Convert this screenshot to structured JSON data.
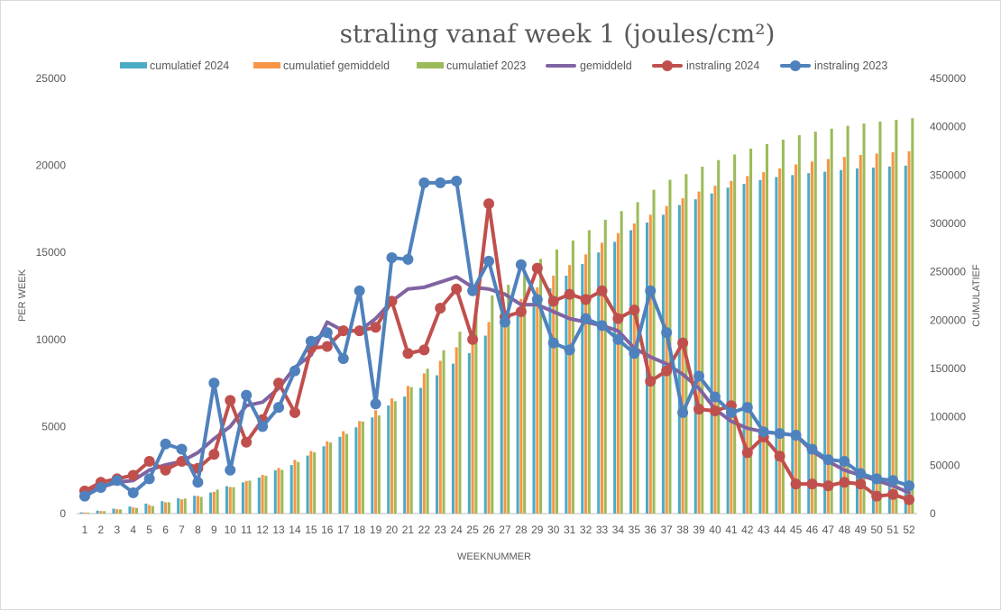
{
  "chart_data": {
    "type": "bar",
    "title": "straling vanaf week 1 (joules/cm²)",
    "xlabel": "WEEKNUMMER",
    "ylabel": "PER WEEK",
    "y2label": "CUMULATIEF",
    "ylim": [
      0,
      25000
    ],
    "y2lim": [
      0,
      450000
    ],
    "y_ticks": [
      "0",
      "5000",
      "10000",
      "15000",
      "20000",
      "25000"
    ],
    "y2_ticks": [
      "0",
      "50000",
      "100000",
      "150000",
      "200000",
      "250000",
      "300000",
      "350000",
      "400000",
      "450000"
    ],
    "grid": false,
    "legend_position": "top",
    "categories": [
      "1",
      "2",
      "3",
      "4",
      "5",
      "6",
      "7",
      "8",
      "9",
      "10",
      "11",
      "12",
      "13",
      "14",
      "15",
      "16",
      "17",
      "18",
      "19",
      "20",
      "21",
      "22",
      "23",
      "24",
      "25",
      "26",
      "27",
      "28",
      "29",
      "30",
      "31",
      "32",
      "33",
      "34",
      "35",
      "36",
      "37",
      "38",
      "39",
      "40",
      "41",
      "42",
      "43",
      "44",
      "45",
      "46",
      "47",
      "48",
      "49",
      "50",
      "51",
      "52"
    ],
    "bar_series": [
      {
        "name": "cumulatief 2024",
        "color": "#4bacc6",
        "axis": "right",
        "values": [
          1300,
          3100,
          5100,
          7300,
          10300,
          12800,
          15800,
          18400,
          21800,
          28300,
          32300,
          37200,
          44700,
          50200,
          60000,
          69600,
          79400,
          89200,
          99500,
          111800,
          121000,
          130000,
          143000,
          155000,
          166000,
          184000,
          195000,
          206000,
          221000,
          233000,
          246000,
          258000,
          270000,
          281000,
          293000,
          301000,
          309000,
          319000,
          325000,
          331000,
          337000,
          341000,
          345000,
          348000,
          350000,
          352000,
          353500,
          355200,
          356900,
          357800,
          358900,
          359800
        ]
      },
      {
        "name": "cumulatief gemiddeld",
        "color": "#f79646",
        "axis": "right",
        "values": [
          1200,
          2700,
          4500,
          6400,
          8900,
          11700,
          14700,
          18200,
          22500,
          27500,
          33700,
          40000,
          47200,
          55600,
          64700,
          74700,
          85200,
          95700,
          106900,
          119100,
          132000,
          145000,
          158000,
          172000,
          185000,
          198000,
          210000,
          222000,
          234000,
          246000,
          257000,
          268000,
          280000,
          290000,
          300000,
          309000,
          318000,
          326000,
          333000,
          339000,
          344000,
          349000,
          353000,
          357000,
          361000,
          364000,
          366600,
          368800,
          370800,
          372300,
          373600,
          374700
        ]
      },
      {
        "name": "cumulatief 2023",
        "color": "#9bbb59",
        "axis": "right",
        "values": [
          1000,
          2500,
          4300,
          5900,
          7800,
          11800,
          15500,
          17300,
          24800,
          27300,
          34100,
          39100,
          45200,
          53400,
          63300,
          73500,
          82400,
          95200,
          101500,
          116200,
          130800,
          149800,
          168900,
          188100,
          211100,
          225600,
          236600,
          251000,
          263300,
          273100,
          282400,
          293000,
          303800,
          312800,
          322000,
          334800,
          345200,
          351000,
          358800,
          365500,
          371300,
          377400,
          382100,
          386700,
          391200,
          394900,
          398000,
          401000,
          403300,
          405300,
          407200,
          408800
        ]
      },
      {
        "name": "gemiddeld",
        "color": "#8064a2",
        "axis": "left",
        "line_only": true
      }
    ],
    "line_series": [
      {
        "name": "gemiddeld",
        "color": "#8064a2",
        "marker": false,
        "values": [
          1200,
          1500,
          1800,
          1900,
          2500,
          2800,
          3000,
          3500,
          4300,
          5000,
          6200,
          6400,
          7200,
          8400,
          9100,
          11000,
          10500,
          10500,
          11200,
          12200,
          12900,
          13000,
          13300,
          13600,
          13000,
          12900,
          12600,
          12000,
          12000,
          11600,
          11200,
          11000,
          10800,
          10500,
          9500,
          9000,
          8600,
          8000,
          7200,
          6000,
          5300,
          4900,
          4700,
          4600,
          4500,
          3600,
          3000,
          2500,
          2200,
          1900,
          1600,
          1200
        ]
      },
      {
        "name": "instraling 2024",
        "color": "#c0504d",
        "marker": true,
        "values": [
          1300,
          1800,
          2000,
          2200,
          3000,
          2500,
          3000,
          2600,
          3400,
          6500,
          4100,
          5400,
          7500,
          5800,
          9500,
          9600,
          10500,
          10500,
          10700,
          12200,
          9200,
          9400,
          11800,
          12900,
          10000,
          17800,
          11300,
          11600,
          14100,
          12200,
          12600,
          12300,
          12800,
          11200,
          11700,
          7600,
          8200,
          9800,
          6000,
          5900,
          6200,
          3500,
          4400,
          3300,
          1700,
          1700,
          1600,
          1800,
          1700,
          1000,
          1100,
          800
        ]
      },
      {
        "name": "instraling 2023",
        "color": "#4f81bd",
        "marker": true,
        "values": [
          1000,
          1500,
          1900,
          1200,
          2000,
          4000,
          3700,
          1800,
          7500,
          2500,
          6800,
          5000,
          6100,
          8200,
          9900,
          10400,
          8900,
          12800,
          6300,
          14700,
          14600,
          19000,
          19000,
          19100,
          12800,
          14500,
          11000,
          14300,
          12300,
          9800,
          9400,
          11200,
          10800,
          10000,
          9200,
          12800,
          10400,
          5800,
          7900,
          6700,
          5800,
          6100,
          4700,
          4600,
          4500,
          3700,
          3100,
          3000,
          2300,
          2000,
          1900,
          1600
        ]
      }
    ]
  }
}
